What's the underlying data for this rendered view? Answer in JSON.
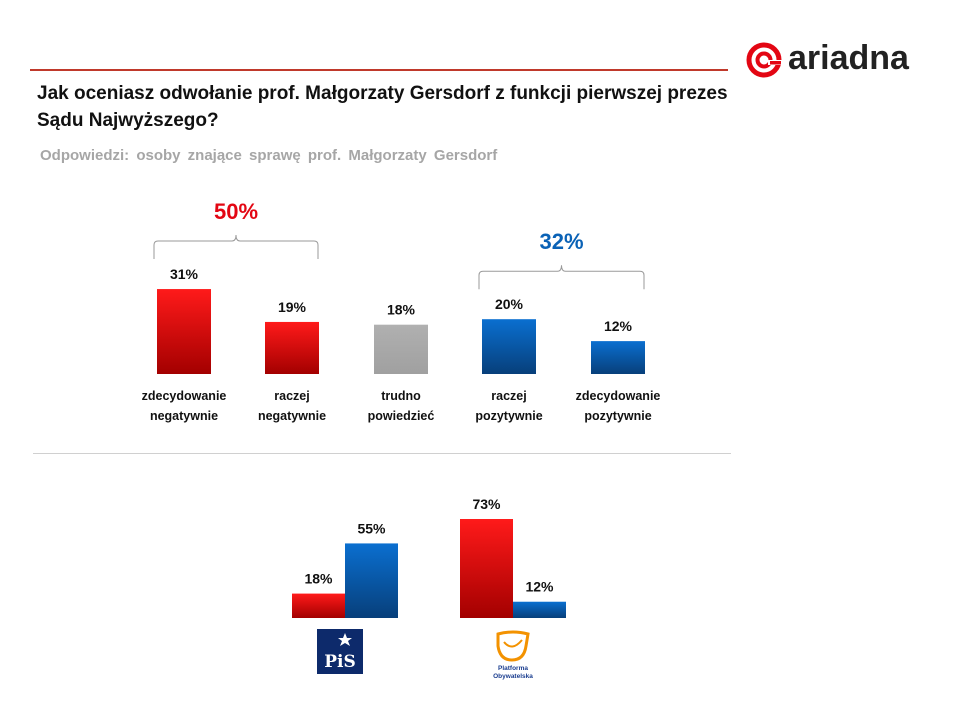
{
  "header": {
    "question": "Jak oceniasz odwołanie prof. Małgorzaty Gersdorf z funkcji pierwszej prezes Sądu Najwyższego?",
    "subtitle": "Odpowiedzi: osoby znające sprawę prof. Małgorzaty Gersdorf",
    "logo_text": "ariadna"
  },
  "colors": {
    "red": "#e30613",
    "blue": "#0a62b6",
    "gray": "#a6a6a6",
    "accent_line": "#c0392b"
  },
  "chart_data": [
    {
      "type": "bar",
      "categories": [
        "zdecydowanie negatywnie",
        "raczej negatywnie",
        "trudno powiedzieć",
        "raczej pozytywnie",
        "zdecydowanie pozytywnie"
      ],
      "values": [
        31,
        19,
        18,
        20,
        12
      ],
      "value_labels": [
        "31%",
        "19%",
        "18%",
        "20%",
        "12%"
      ],
      "bar_colors": [
        "red",
        "red",
        "gray",
        "blue",
        "blue"
      ],
      "groups": [
        {
          "label": "50%",
          "color": "red",
          "members": [
            0,
            1
          ]
        },
        {
          "label": "32%",
          "color": "blue",
          "members": [
            3,
            4
          ]
        }
      ],
      "ylim": [
        0,
        35
      ]
    },
    {
      "type": "bar",
      "categories": [
        "PiS",
        "Platforma Obywatelska"
      ],
      "series": [
        {
          "color": "red",
          "values": [
            18,
            73
          ],
          "value_labels": [
            "18%",
            "73%"
          ]
        },
        {
          "color": "blue",
          "values": [
            55,
            12
          ],
          "value_labels": [
            "55%",
            "12%"
          ]
        }
      ],
      "category_logos": [
        "pis-logo",
        "po-logo"
      ],
      "ylim": [
        0,
        80
      ]
    }
  ]
}
